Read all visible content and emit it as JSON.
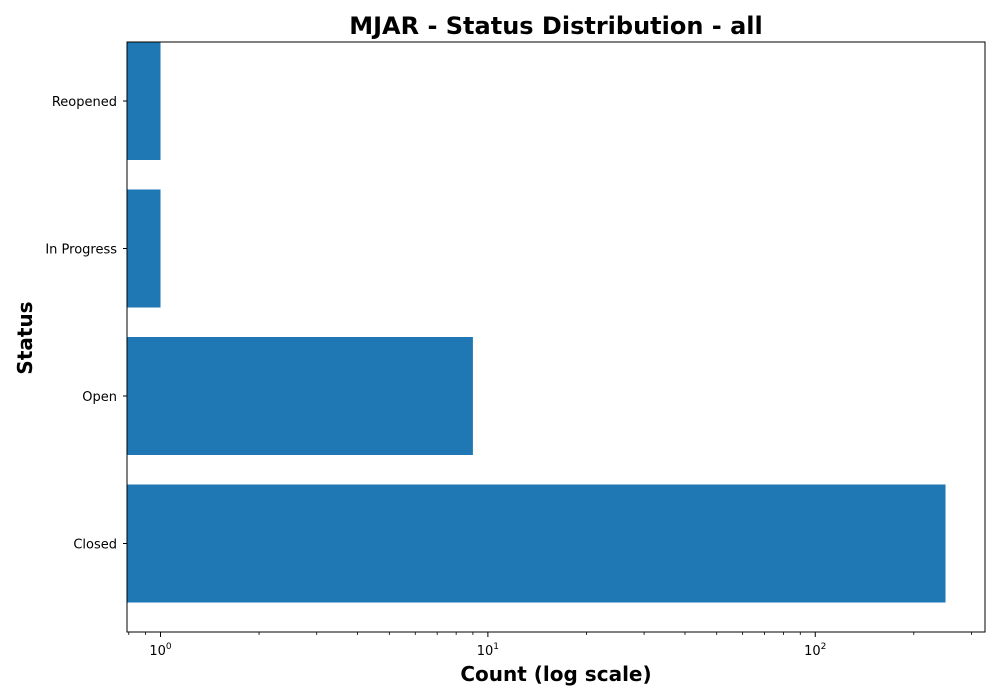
{
  "chart_data": {
    "type": "bar",
    "orientation": "horizontal",
    "title": "MJAR - Status Distribution - all",
    "xlabel": "Count (log scale)",
    "ylabel": "Status",
    "x_scale": "log",
    "xlim": [
      0.79,
      330
    ],
    "x_ticks": [
      {
        "value": 1,
        "base": "10",
        "exp": "0"
      },
      {
        "value": 10,
        "base": "10",
        "exp": "1"
      },
      {
        "value": 100,
        "base": "10",
        "exp": "2"
      }
    ],
    "categories": [
      "Closed",
      "Open",
      "In Progress",
      "Reopened"
    ],
    "values": [
      250,
      9,
      1,
      1
    ],
    "bar_color": "#1f77b4",
    "grid": false,
    "legend": "none"
  }
}
